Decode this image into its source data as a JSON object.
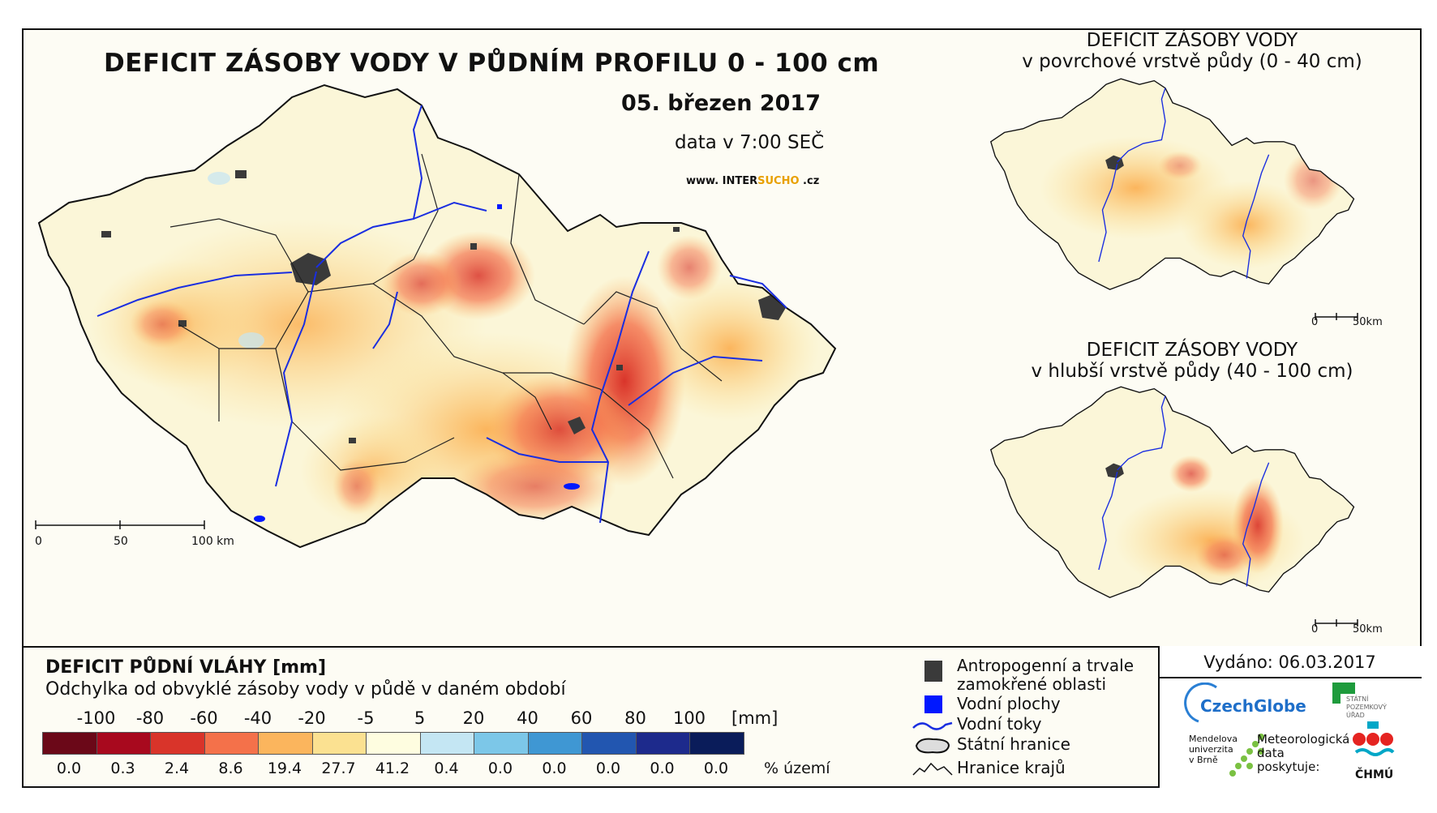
{
  "main_map": {
    "title": "DEFICIT ZÁSOBY VODY V PŮDNÍM PROFILU 0 - 100 cm",
    "date": "05. březen 2017",
    "time": "data v 7:00 SEČ",
    "website_prefix": "www. INTER",
    "website_highlight": "SUCHO",
    "website_suffix": " .cz",
    "scale": [
      "0",
      "50",
      "100 km"
    ]
  },
  "inset_top": {
    "title_line1": "DEFICIT ZÁSOBY VODY",
    "title_line2": "v povrchové vrstvě půdy (0 - 40 cm)",
    "scale": [
      "0",
      "50km"
    ]
  },
  "inset_bottom": {
    "title_line1": "DEFICIT ZÁSOBY VODY",
    "title_line2": "v hlubší vrstvě půdy (40 - 100 cm)",
    "scale": [
      "0",
      "50km"
    ]
  },
  "legend": {
    "title": "DEFICIT PŮDNÍ VLÁHY [mm]",
    "subtitle": "Odchylka od obvyklé zásoby vody v půdě v daném období",
    "unit": "[mm]",
    "percent_label": "% území",
    "class_bounds": [
      "-100",
      "-80",
      "-60",
      "-40",
      "-20",
      "-5",
      "5",
      "20",
      "40",
      "60",
      "80",
      "100"
    ],
    "colors": [
      "#6b0818",
      "#a8091e",
      "#d9342a",
      "#f4714a",
      "#fbb55d",
      "#fbe191",
      "#fefde0",
      "#c4e6f3",
      "#7cc7e8",
      "#3f97d3",
      "#2256b0",
      "#1d2a8c",
      "#0a1c5a"
    ],
    "percents": [
      "0.0",
      "0.3",
      "2.4",
      "8.6",
      "19.4",
      "27.7",
      "41.2",
      "0.4",
      "0.0",
      "0.0",
      "0.0",
      "0.0",
      "0.0"
    ]
  },
  "map_key": {
    "anthropogenic_line1": "Antropogenní a trvale",
    "anthropogenic_line2": "zamokřené oblasti",
    "water_bodies": "Vodní plochy",
    "rivers": "Vodní toky",
    "state_border": "Státní hranice",
    "region_border": "Hranice krajů"
  },
  "issued": "Vydáno: 06.03.2017",
  "logos": {
    "czechglobe": "CzechGlobe",
    "spu_line1": "STÁTNÍ",
    "spu_line2": "POZEMKOVÝ",
    "spu_line3": "ÚŘAD",
    "mendel_line1": "Mendelova",
    "mendel_line2": "univerzita",
    "mendel_line3": "v Brně",
    "meteo_line1": "Meteorologická",
    "meteo_line2": "data",
    "meteo_line3": "poskytuje:",
    "chmu": "ČHMÚ"
  },
  "colors": {
    "river": "#1a2ee0",
    "water_body": "#0018ff",
    "anthropogenic": "#3a3a3a",
    "land_base": "#fbf6d8"
  }
}
